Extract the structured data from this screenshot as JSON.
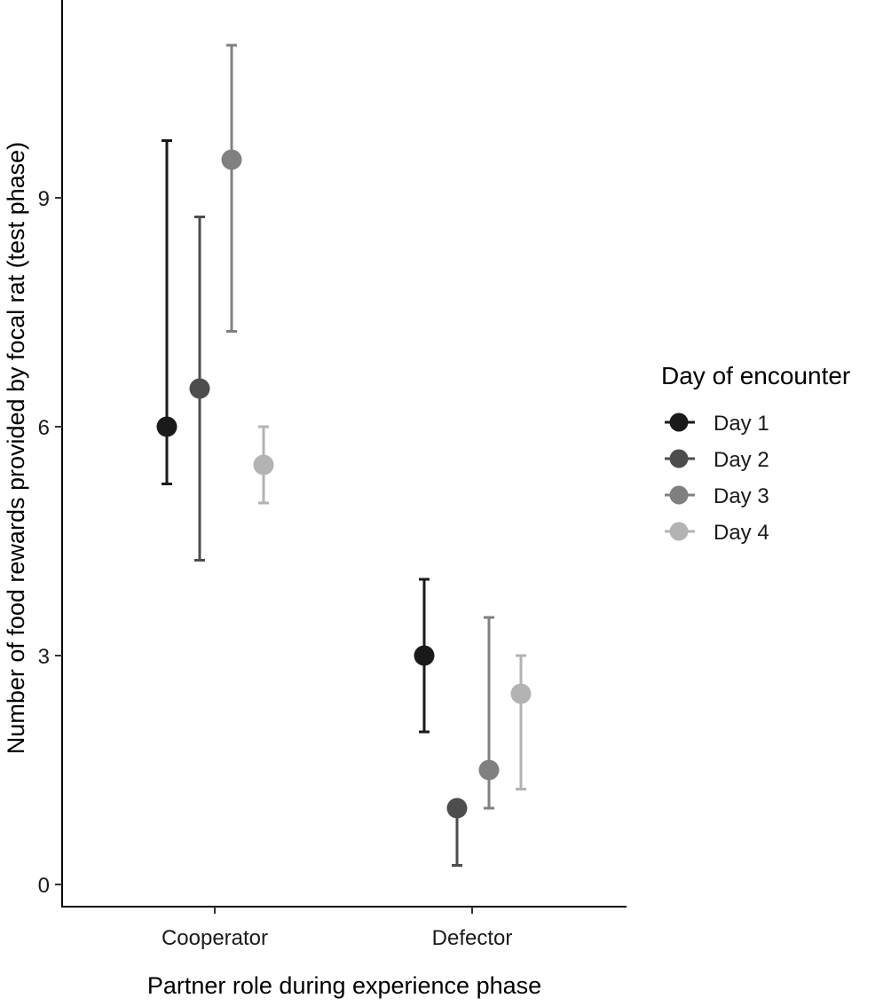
{
  "chart_data": {
    "type": "scatter",
    "subtype": "point-with-errorbars",
    "categories": [
      "Cooperator",
      "Defector"
    ],
    "xlabel": "Partner role during experience phase",
    "ylabel": "Number of food rewards provided by focal rat (test phase)",
    "ylim": [
      0,
      11.5
    ],
    "yticks": [
      "0",
      "3",
      "6",
      "9"
    ],
    "grid": false,
    "legend": {
      "title": "Day of encounter",
      "position": "right"
    },
    "series": [
      {
        "name": "Day 1",
        "color": "#1a1a1a",
        "points": [
          {
            "category": "Cooperator",
            "y": 6.0,
            "ymin": 5.25,
            "ymax": 9.75
          },
          {
            "category": "Defector",
            "y": 3.0,
            "ymin": 2.0,
            "ymax": 4.0
          }
        ]
      },
      {
        "name": "Day 2",
        "color": "#4d4d4d",
        "points": [
          {
            "category": "Cooperator",
            "y": 6.5,
            "ymin": 4.25,
            "ymax": 8.75
          },
          {
            "category": "Defector",
            "y": 1.0,
            "ymin": 0.25,
            "ymax": 1.0
          }
        ]
      },
      {
        "name": "Day 3",
        "color": "#808080",
        "points": [
          {
            "category": "Cooperator",
            "y": 9.5,
            "ymin": 7.25,
            "ymax": 11.0
          },
          {
            "category": "Defector",
            "y": 1.5,
            "ymin": 1.0,
            "ymax": 3.5
          }
        ]
      },
      {
        "name": "Day 4",
        "color": "#b3b3b3",
        "points": [
          {
            "category": "Cooperator",
            "y": 5.5,
            "ymin": 5.0,
            "ymax": 6.0
          },
          {
            "category": "Defector",
            "y": 2.5,
            "ymin": 1.25,
            "ymax": 3.0
          }
        ]
      }
    ]
  }
}
